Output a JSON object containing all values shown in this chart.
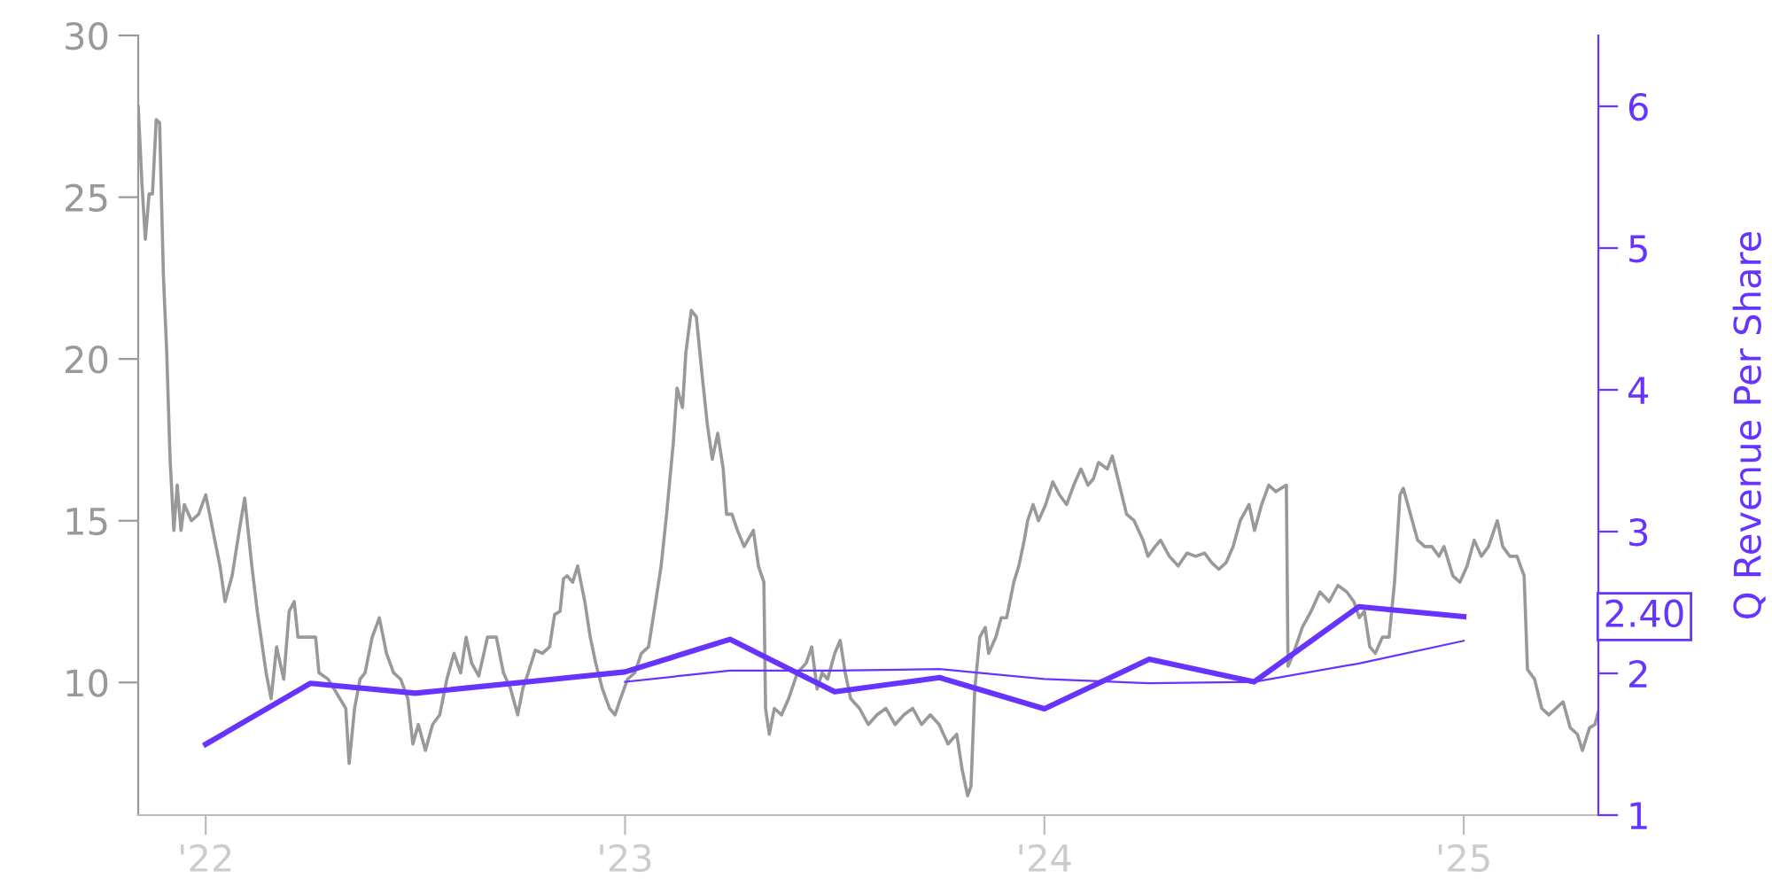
{
  "chart_data": {
    "type": "line",
    "y2label": "Q Revenue Per Share",
    "grid": false,
    "legend": false,
    "marker": "none",
    "xlim": [
      2021.839,
      2025.321
    ],
    "xticks": [
      {
        "value": 2022,
        "label": "'22"
      },
      {
        "value": 2023,
        "label": "'23"
      },
      {
        "value": 2024,
        "label": "'24"
      },
      {
        "value": 2025,
        "label": "'25"
      }
    ],
    "ylim": [
      5.9,
      30
    ],
    "yticks": [
      10,
      15,
      20,
      25,
      30
    ],
    "y2lim": [
      1,
      6.5
    ],
    "y2ticks": [
      1,
      2,
      3,
      4,
      5,
      6
    ],
    "annotations": [
      "2.40"
    ],
    "series": [
      {
        "color": "#999999",
        "x": [
          2021.839,
          2021.848,
          2021.856,
          2021.865,
          2021.873,
          2021.882,
          2021.89,
          2021.899,
          2021.907,
          2021.915,
          2021.924,
          2021.932,
          2021.941,
          2021.949,
          2021.966,
          2021.983,
          2022.0,
          2022.017,
          2022.034,
          2022.046,
          2022.063,
          2022.08,
          2022.093,
          2022.101,
          2022.11,
          2022.123,
          2022.144,
          2022.156,
          2022.169,
          2022.186,
          2022.199,
          2022.211,
          2022.22,
          2022.262,
          2022.27,
          2022.292,
          2022.334,
          2022.342,
          2022.355,
          2022.368,
          2022.38,
          2022.397,
          2022.414,
          2022.431,
          2022.448,
          2022.465,
          2022.482,
          2022.494,
          2022.507,
          2022.524,
          2022.541,
          2022.558,
          2022.575,
          2022.592,
          2022.608,
          2022.621,
          2022.634,
          2022.651,
          2022.672,
          2022.693,
          2022.71,
          2022.727,
          2022.744,
          2022.756,
          2022.769,
          2022.786,
          2022.803,
          2022.82,
          2022.832,
          2022.845,
          2022.853,
          2022.862,
          2022.875,
          2022.887,
          2022.904,
          2022.917,
          2022.93,
          2022.946,
          2022.963,
          2022.976,
          2022.989,
          2023.006,
          2023.023,
          2023.039,
          2023.056,
          2023.073,
          2023.086,
          2023.099,
          2023.115,
          2023.124,
          2023.137,
          2023.145,
          2023.158,
          2023.17,
          2023.183,
          2023.196,
          2023.208,
          2023.221,
          2023.234,
          2023.242,
          2023.255,
          2023.268,
          2023.284,
          2023.306,
          2023.318,
          2023.331,
          2023.335,
          2023.344,
          2023.356,
          2023.373,
          2023.39,
          2023.411,
          2023.432,
          2023.445,
          2023.458,
          2023.47,
          2023.483,
          2023.5,
          2023.513,
          2023.525,
          2023.538,
          2023.559,
          2023.58,
          2023.601,
          2023.622,
          2023.644,
          2023.665,
          2023.686,
          2023.707,
          2023.728,
          2023.749,
          2023.77,
          2023.791,
          2023.804,
          2023.817,
          2023.825,
          2023.834,
          2023.846,
          2023.859,
          2023.867,
          2023.884,
          2023.897,
          2023.91,
          2023.927,
          2023.939,
          2023.952,
          2023.96,
          2023.973,
          2023.986,
          2024.003,
          2024.02,
          2024.036,
          2024.053,
          2024.07,
          2024.087,
          2024.104,
          2024.117,
          2024.129,
          2024.15,
          2024.162,
          2024.179,
          2024.196,
          2024.214,
          2024.235,
          2024.247,
          2024.264,
          2024.277,
          2024.298,
          2024.319,
          2024.34,
          2024.361,
          2024.382,
          2024.399,
          2024.416,
          2024.433,
          2024.45,
          2024.467,
          2024.488,
          2024.501,
          2024.518,
          2024.535,
          2024.552,
          2024.577,
          2024.581,
          2024.594,
          2024.615,
          2024.636,
          2024.657,
          2024.679,
          2024.7,
          2024.721,
          2024.738,
          2024.751,
          2024.763,
          2024.776,
          2024.789,
          2024.806,
          2024.822,
          2024.835,
          2024.848,
          2024.856,
          2024.873,
          2024.89,
          2024.907,
          2024.924,
          2024.941,
          2024.953,
          2024.974,
          2024.991,
          2025.008,
          2025.025,
          2025.042,
          2025.059,
          2025.08,
          2025.093,
          2025.11,
          2025.127,
          2025.144,
          2025.152,
          2025.169,
          2025.186,
          2025.203,
          2025.22,
          2025.237,
          2025.254,
          2025.271,
          2025.283,
          2025.3,
          2025.313,
          2025.321
        ],
        "values": [
          27.8,
          25.4,
          23.7,
          25.1,
          25.1,
          27.4,
          27.3,
          22.6,
          20.2,
          16.9,
          14.7,
          16.1,
          14.7,
          15.5,
          15.0,
          15.2,
          15.8,
          14.7,
          13.6,
          12.5,
          13.3,
          14.7,
          15.7,
          14.7,
          13.6,
          12.2,
          10.3,
          9.5,
          11.1,
          10.1,
          12.2,
          12.5,
          11.4,
          11.4,
          10.3,
          10.1,
          9.2,
          7.5,
          9.2,
          10.1,
          10.3,
          11.4,
          12.0,
          10.9,
          10.3,
          10.1,
          9.5,
          8.1,
          8.7,
          7.9,
          8.7,
          9.0,
          10.1,
          10.9,
          10.3,
          11.4,
          10.6,
          10.2,
          11.4,
          11.4,
          10.3,
          9.8,
          9.0,
          9.8,
          10.3,
          11.0,
          10.9,
          11.1,
          12.1,
          12.2,
          13.2,
          13.3,
          13.1,
          13.6,
          12.5,
          11.4,
          10.6,
          9.8,
          9.2,
          9.0,
          9.5,
          10.1,
          10.3,
          10.9,
          11.1,
          12.5,
          13.6,
          15.2,
          17.4,
          19.1,
          18.5,
          20.2,
          21.5,
          21.3,
          19.6,
          18.0,
          16.9,
          17.7,
          16.6,
          15.2,
          15.2,
          14.7,
          14.2,
          14.7,
          13.6,
          13.1,
          9.2,
          8.4,
          9.2,
          9.0,
          9.5,
          10.3,
          10.6,
          11.1,
          9.8,
          10.3,
          10.1,
          10.9,
          11.3,
          10.3,
          9.5,
          9.2,
          8.7,
          9.0,
          9.2,
          8.7,
          9.0,
          9.2,
          8.7,
          9.0,
          8.7,
          8.1,
          8.4,
          7.3,
          6.5,
          6.8,
          9.8,
          11.4,
          11.7,
          10.9,
          11.4,
          12.0,
          12.0,
          13.1,
          13.6,
          14.4,
          15.0,
          15.5,
          15.0,
          15.5,
          16.2,
          15.8,
          15.5,
          16.1,
          16.6,
          16.1,
          16.3,
          16.8,
          16.6,
          17.0,
          16.1,
          15.2,
          15.0,
          14.4,
          13.9,
          14.2,
          14.4,
          13.9,
          13.6,
          14.0,
          13.9,
          14.0,
          13.7,
          13.5,
          13.7,
          14.2,
          15.0,
          15.5,
          14.7,
          15.5,
          16.1,
          15.9,
          16.1,
          10.5,
          10.9,
          11.7,
          12.2,
          12.8,
          12.5,
          13.0,
          12.8,
          12.5,
          12.0,
          12.2,
          11.1,
          10.9,
          11.4,
          11.4,
          13.1,
          15.8,
          16.0,
          15.2,
          14.4,
          14.2,
          14.2,
          13.9,
          14.2,
          13.3,
          13.1,
          13.6,
          14.4,
          13.9,
          14.2,
          15.0,
          14.2,
          13.9,
          13.9,
          13.3,
          10.4,
          10.1,
          9.2,
          9.0,
          9.2,
          9.4,
          8.6,
          8.4,
          7.9,
          8.6,
          8.7,
          9.1
        ]
      },
      {
        "color": "#6633ff",
        "axis": "y2",
        "x": [
          2022.0,
          2022.25,
          2022.5,
          2023.0,
          2023.25,
          2023.5,
          2023.75,
          2024.0,
          2024.25,
          2024.5,
          2024.75,
          2025.0
        ],
        "values": [
          1.5,
          1.93,
          1.86,
          2.01,
          2.24,
          1.87,
          1.97,
          1.75,
          2.1,
          1.94,
          2.47,
          2.4
        ]
      },
      {
        "color": "#6633ff",
        "axis": "y2",
        "x": [
          2023.0,
          2023.25,
          2023.5,
          2023.75,
          2024.0,
          2024.25,
          2024.5,
          2024.75,
          2025.0
        ],
        "values": [
          1.94,
          2.02,
          2.02,
          2.03,
          1.96,
          1.93,
          1.94,
          2.07,
          2.23
        ]
      }
    ]
  }
}
